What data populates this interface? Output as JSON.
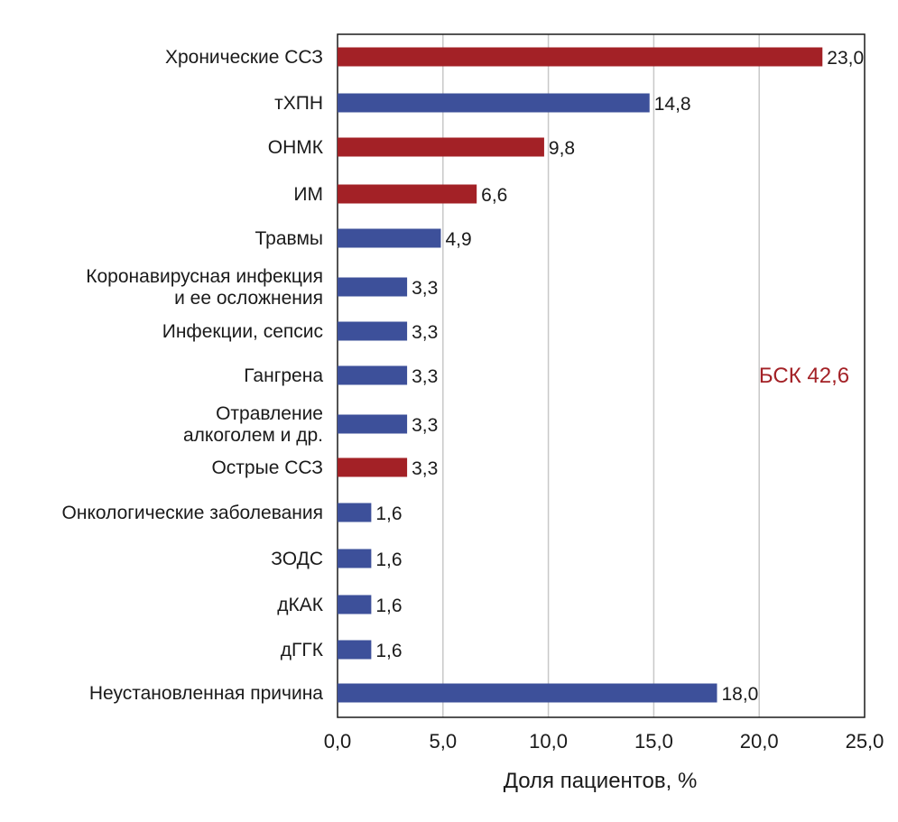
{
  "chart_data": {
    "type": "bar",
    "orientation": "horizontal",
    "xlabel": "Доля пациентов, %",
    "xlim": [
      0,
      25
    ],
    "xticks": [
      0,
      5,
      10,
      15,
      20,
      25
    ],
    "xtick_labels": [
      "0,0",
      "5,0",
      "10,0",
      "15,0",
      "20,0",
      "25,0"
    ],
    "grid": true,
    "annotation": {
      "text": "БСК 42,6",
      "color": "#a32126"
    },
    "colors": {
      "bsk": "#a32126",
      "other": "#3d509a"
    },
    "bars": [
      {
        "label": [
          "Хронические ССЗ"
        ],
        "value": 23.0,
        "value_label": "23,0",
        "group": "bsk"
      },
      {
        "label": [
          "тХПН"
        ],
        "value": 14.8,
        "value_label": "14,8",
        "group": "other"
      },
      {
        "label": [
          "ОНМК"
        ],
        "value": 9.8,
        "value_label": "9,8",
        "group": "bsk"
      },
      {
        "label": [
          "ИМ"
        ],
        "value": 6.6,
        "value_label": "6,6",
        "group": "bsk"
      },
      {
        "label": [
          "Травмы"
        ],
        "value": 4.9,
        "value_label": "4,9",
        "group": "other"
      },
      {
        "label": [
          "Коронавирусная инфекция",
          "и ее осложнения"
        ],
        "value": 3.3,
        "value_label": "3,3",
        "group": "other"
      },
      {
        "label": [
          "Инфекции, сепсис"
        ],
        "value": 3.3,
        "value_label": "3,3",
        "group": "other"
      },
      {
        "label": [
          "Гангрена"
        ],
        "value": 3.3,
        "value_label": "3,3",
        "group": "other"
      },
      {
        "label": [
          "Отравление",
          "алкоголем и др."
        ],
        "value": 3.3,
        "value_label": "3,3",
        "group": "other"
      },
      {
        "label": [
          "Острые ССЗ"
        ],
        "value": 3.3,
        "value_label": "3,3",
        "group": "bsk"
      },
      {
        "label": [
          "Онкологические заболевания"
        ],
        "value": 1.6,
        "value_label": "1,6",
        "group": "other"
      },
      {
        "label": [
          "ЗОДС"
        ],
        "value": 1.6,
        "value_label": "1,6",
        "group": "other"
      },
      {
        "label": [
          "дКАК"
        ],
        "value": 1.6,
        "value_label": "1,6",
        "group": "other"
      },
      {
        "label": [
          "дГГК"
        ],
        "value": 1.6,
        "value_label": "1,6",
        "group": "other"
      },
      {
        "label": [
          "Неустановленная причина"
        ],
        "value": 18.0,
        "value_label": "18,0",
        "group": "other"
      }
    ]
  }
}
